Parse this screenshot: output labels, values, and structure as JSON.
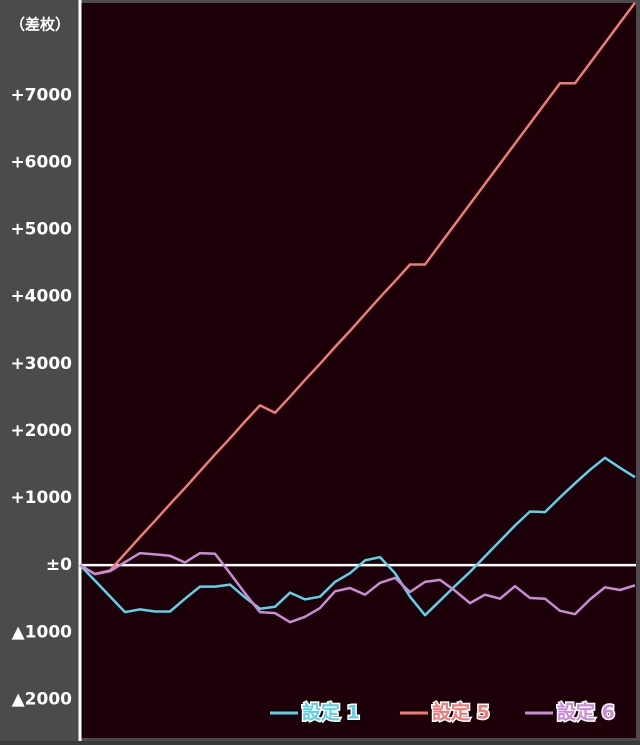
{
  "chart_data": {
    "type": "line",
    "y_label": "（差枚）",
    "categories": [
      null,
      null,
      null,
      null,
      null,
      null,
      null,
      null,
      null,
      null,
      null,
      null,
      null,
      null,
      null,
      null,
      null,
      null,
      null,
      null,
      null,
      null,
      null,
      null,
      null,
      null,
      null,
      null,
      null,
      null,
      null,
      null,
      null,
      null,
      null,
      null,
      null,
      null
    ],
    "series": [
      {
        "name": "設定 1",
        "color": "#5fd0e6",
        "values": [
          0,
          -230,
          -465,
          -700,
          -660,
          -690,
          -690,
          -500,
          -320,
          -320,
          -290,
          -480,
          -650,
          -620,
          -410,
          -510,
          -470,
          -250,
          -120,
          70,
          120,
          -120,
          -470,
          -745,
          -530,
          -310,
          -100,
          130,
          360,
          590,
          800,
          790,
          1010,
          1220,
          1420,
          1600,
          1450,
          1310
        ]
      },
      {
        "name": "設定 5",
        "color": "#f07a78",
        "values": [
          0,
          -130,
          -80,
          170,
          420,
          660,
          910,
          1150,
          1400,
          1650,
          1890,
          2140,
          2380,
          2270,
          2510,
          2760,
          3000,
          3250,
          3490,
          3740,
          3990,
          4230,
          4480,
          4480,
          4780,
          5080,
          5380,
          5680,
          5980,
          6280,
          6580,
          6880,
          7180,
          7180,
          7480,
          7780,
          8080,
          8380
        ]
      },
      {
        "name": "設定 6",
        "color": "#c98bd6",
        "values": [
          0,
          -135,
          -90,
          45,
          179,
          160,
          140,
          40,
          180,
          170,
          -120,
          -420,
          -700,
          -715,
          -850,
          -770,
          -640,
          -390,
          -340,
          -440,
          -265,
          -190,
          -400,
          -250,
          -220,
          -380,
          -566,
          -440,
          -500,
          -313,
          -490,
          -500,
          -680,
          -730,
          -510,
          -330,
          -370,
          -300
        ]
      }
    ],
    "ylim": [
      -2620,
      8420
    ],
    "yticks": [
      {
        "value": -2000,
        "label": "▲2000"
      },
      {
        "value": -1000,
        "label": "▲1000"
      },
      {
        "value": 0,
        "label": "±0"
      },
      {
        "value": 1000,
        "label": "+1000"
      },
      {
        "value": 2000,
        "label": "+2000"
      },
      {
        "value": 3000,
        "label": "+3000"
      },
      {
        "value": 4000,
        "label": "+4000"
      },
      {
        "value": 5000,
        "label": "+5000"
      },
      {
        "value": 6000,
        "label": "+6000"
      },
      {
        "value": 7000,
        "label": "+7000"
      }
    ],
    "grid": false,
    "legend": "bottom-right"
  }
}
